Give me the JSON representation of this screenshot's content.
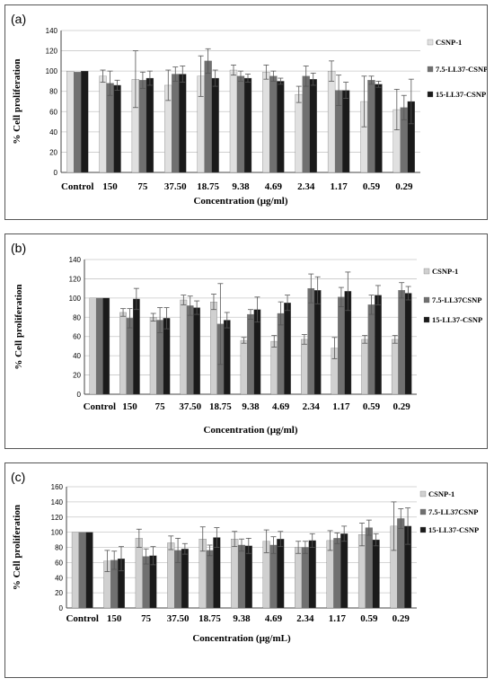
{
  "chart_data": [
    {
      "type": "bar",
      "panel_label": "(a)",
      "categories": [
        "Control",
        "150",
        "75",
        "37.50",
        "18.75",
        "9.38",
        "4.69",
        "2.34",
        "1.17",
        "0.59",
        "0.29"
      ],
      "xlabel": "Concentration (µg/ml)",
      "ylabel": "% Cell proliferation",
      "ylim": [
        0,
        140
      ],
      "yticks": [
        "0",
        "20",
        "40",
        "60",
        "80",
        "100",
        "120",
        "140"
      ],
      "grid": "horizontal",
      "legend_position": "right",
      "series": [
        {
          "name": "CSNP-1",
          "color": "#e0e0e0",
          "values": [
            100,
            95,
            92,
            86,
            95,
            101,
            99,
            77,
            100,
            70,
            62
          ],
          "errors": [
            0,
            6,
            28,
            15,
            20,
            5,
            7,
            8,
            10,
            25,
            20
          ]
        },
        {
          "name": "7.5-LL37-CSNP",
          "color": "#707070",
          "values": [
            99,
            88,
            91,
            97,
            110,
            95,
            95,
            95,
            81,
            91,
            64
          ],
          "errors": [
            0,
            12,
            8,
            7,
            12,
            5,
            5,
            10,
            15,
            4,
            12
          ]
        },
        {
          "name": "15-LL37-CSNP",
          "color": "#1a1a1a",
          "values": [
            100,
            86,
            93,
            97,
            93,
            93,
            90,
            92,
            81,
            87,
            70
          ],
          "errors": [
            0,
            5,
            7,
            8,
            8,
            4,
            3,
            6,
            8,
            3,
            22
          ]
        }
      ]
    },
    {
      "type": "bar",
      "panel_label": "(b)",
      "categories": [
        "Control",
        "150",
        "75",
        "37.50",
        "18.75",
        "9.38",
        "4.69",
        "2.34",
        "1.17",
        "0.59",
        "0.29"
      ],
      "xlabel": "Concentration (µg/ml)",
      "ylabel": "% Cell proliferation",
      "ylim": [
        0,
        140
      ],
      "yticks": [
        "0",
        "20",
        "40",
        "60",
        "80",
        "100",
        "120",
        "140"
      ],
      "grid": "horizontal",
      "legend_position": "right",
      "series": [
        {
          "name": "CSNP-1",
          "color": "#d0d0d0",
          "values": [
            100,
            85,
            80,
            98,
            96,
            56,
            55,
            57,
            48,
            57,
            57
          ],
          "errors": [
            0,
            4,
            4,
            5,
            8,
            3,
            6,
            5,
            11,
            4,
            4
          ]
        },
        {
          "name": "7.5-LL37CSNP",
          "color": "#707070",
          "values": [
            100,
            79,
            77,
            92,
            73,
            83,
            84,
            110,
            101,
            93,
            108
          ],
          "errors": [
            0,
            10,
            13,
            10,
            42,
            5,
            12,
            15,
            10,
            10,
            8
          ]
        },
        {
          "name": "15-LL37-CSNP",
          "color": "#1a1a1a",
          "values": [
            100,
            99,
            79,
            90,
            77,
            88,
            95,
            108,
            107,
            103,
            105
          ],
          "errors": [
            0,
            11,
            11,
            7,
            8,
            13,
            8,
            14,
            20,
            10,
            7
          ]
        }
      ]
    },
    {
      "type": "bar",
      "panel_label": "(c)",
      "categories": [
        "Control",
        "150",
        "75",
        "37.50",
        "18.75",
        "9.38",
        "4.69",
        "2.34",
        "1.17",
        "0.59",
        "0.29"
      ],
      "xlabel": "Concentration (µg/mL)",
      "ylabel": "% Cell proliferation",
      "ylim": [
        0,
        160
      ],
      "yticks": [
        "0",
        "20",
        "40",
        "60",
        "80",
        "100",
        "120",
        "140",
        "160"
      ],
      "grid": "horizontal",
      "legend_position": "right",
      "series": [
        {
          "name": "CSNP-1",
          "color": "#d0d0d0",
          "values": [
            100,
            62,
            92,
            86,
            91,
            91,
            88,
            80,
            89,
            97,
            108
          ],
          "errors": [
            0,
            14,
            12,
            9,
            16,
            10,
            15,
            8,
            13,
            15,
            32
          ]
        },
        {
          "name": "7.5-LL37CSNP",
          "color": "#707070",
          "values": [
            100,
            63,
            68,
            76,
            76,
            83,
            83,
            80,
            92,
            106,
            118
          ],
          "errors": [
            0,
            12,
            10,
            16,
            7,
            8,
            11,
            8,
            7,
            10,
            13
          ]
        },
        {
          "name": "15-LL37-CSNP",
          "color": "#1a1a1a",
          "values": [
            100,
            65,
            69,
            78,
            93,
            82,
            91,
            89,
            98,
            90,
            108
          ],
          "errors": [
            0,
            16,
            12,
            7,
            13,
            10,
            10,
            9,
            10,
            8,
            24
          ]
        }
      ]
    }
  ]
}
